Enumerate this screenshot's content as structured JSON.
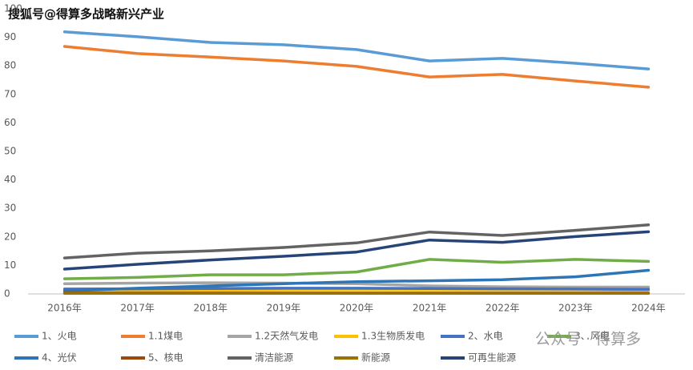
{
  "chart_data": {
    "type": "line",
    "watermark": "搜狐号@得算多战略新兴产业",
    "watermark2": "公众号 · 得算多",
    "categories": [
      "2016年",
      "2017年",
      "2018年",
      "2019年",
      "2020年",
      "2021年",
      "2022年",
      "2023年",
      "2024年"
    ],
    "ylim": [
      0,
      100
    ],
    "yticks": [
      0,
      10,
      20,
      30,
      40,
      50,
      60,
      70,
      80,
      90,
      100
    ],
    "series": [
      {
        "name": "1、火电",
        "color": "#5b9bd5",
        "values": [
          91.9,
          90.2,
          88.2,
          87.4,
          85.7,
          81.7,
          82.6,
          80.9,
          78.9
        ]
      },
      {
        "name": "1.1煤电",
        "color": "#ed7d31",
        "values": [
          86.8,
          84.3,
          83.1,
          81.7,
          79.8,
          76.1,
          77.0,
          74.7,
          72.5
        ]
      },
      {
        "name": "1.2天然气发电",
        "color": "#a5a5a5",
        "values": [
          3.6,
          3.8,
          3.9,
          3.8,
          3.6,
          2.8,
          2.5,
          2.4,
          2.4
        ]
      },
      {
        "name": "1.3生物质发电",
        "color": "#ffc000",
        "values": [
          1.1,
          1.2,
          1.3,
          1.4,
          1.5,
          1.5,
          1.4,
          1.4,
          1.3
        ]
      },
      {
        "name": "2、水电",
        "color": "#4472c4",
        "values": [
          1.7,
          1.8,
          1.9,
          2.0,
          2.0,
          1.9,
          1.8,
          1.7,
          1.6
        ]
      },
      {
        "name": "3、风电",
        "color": "#70ad47",
        "values": [
          5.3,
          5.8,
          6.7,
          6.7,
          7.7,
          12.1,
          11.1,
          12.1,
          11.4
        ]
      },
      {
        "name": "4、光伏",
        "color": "#2e75b6",
        "values": [
          1.0,
          2.0,
          2.8,
          3.6,
          4.3,
          4.6,
          5.0,
          6.0,
          8.3
        ]
      },
      {
        "name": "5、核电",
        "color": "#9e480e",
        "values": [
          0.3,
          0.3,
          0.3,
          0.3,
          0.3,
          0.3,
          0.3,
          0.3,
          0.3
        ]
      },
      {
        "name": "清洁能源",
        "color": "#636363",
        "values": [
          12.6,
          14.3,
          15.1,
          16.3,
          17.9,
          21.7,
          20.5,
          22.3,
          24.2
        ]
      },
      {
        "name": "新能源",
        "color": "#997300",
        "values": [
          0.2,
          0.2,
          0.2,
          0.2,
          0.2,
          0.2,
          0.2,
          0.2,
          0.2
        ]
      },
      {
        "name": "可再生能源",
        "color": "#264478",
        "values": [
          8.7,
          10.4,
          11.9,
          13.2,
          14.7,
          18.9,
          18.1,
          20.1,
          21.8
        ]
      }
    ]
  }
}
